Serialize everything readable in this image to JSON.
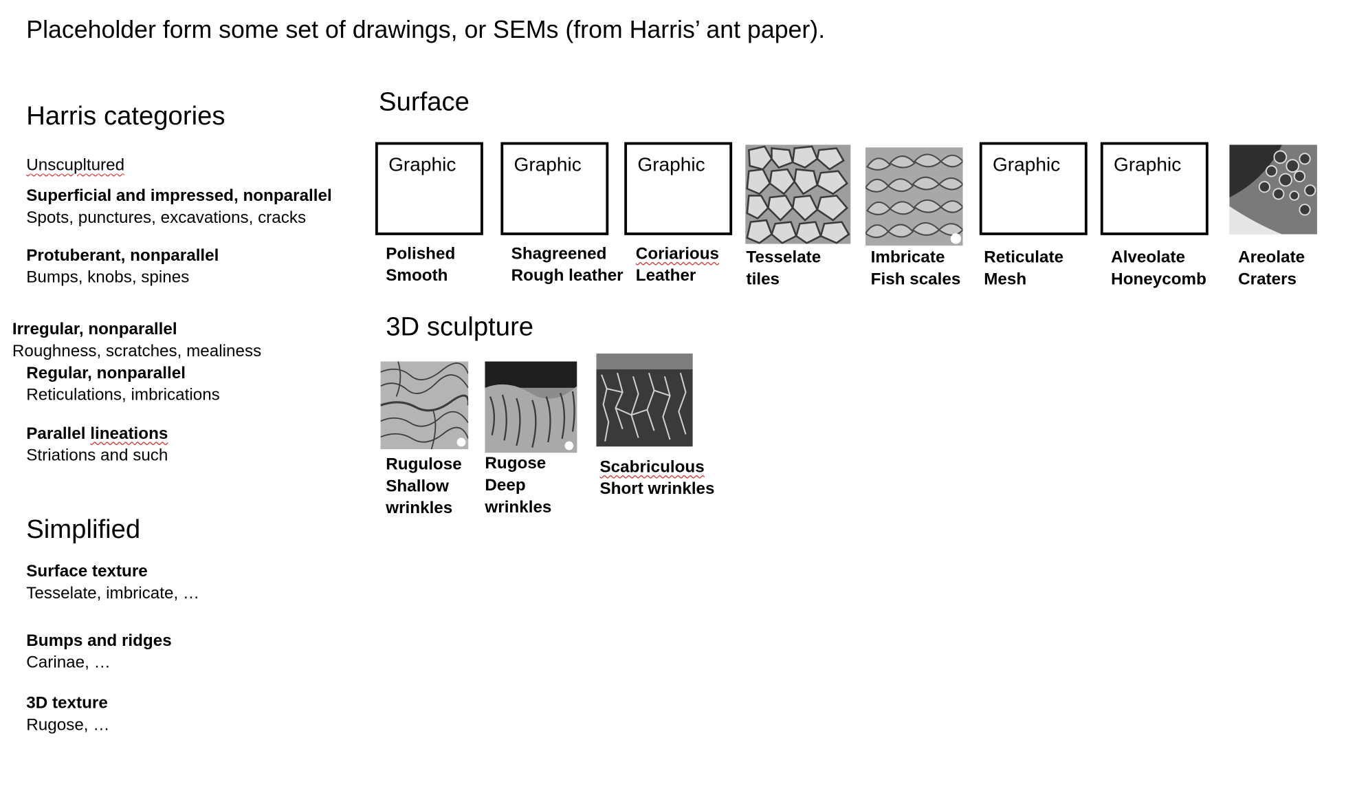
{
  "title": "Placeholder form some set of drawings, or SEMs (from Harris’ ant paper).",
  "harris": {
    "heading": "Harris categories",
    "unsculptured": "Unscupltured",
    "items": [
      {
        "name": "Superficial and impressed, nonparallel",
        "desc": "Spots, punctures, excavations, cracks"
      },
      {
        "name": "Protuberant, nonparallel",
        "desc": "Bumps, knobs, spines"
      },
      {
        "name": "Irregular, nonparallel",
        "desc": "Roughness, scratches, mealiness"
      },
      {
        "name": "Regular, nonparallel",
        "desc": "Reticulations, imbrications"
      },
      {
        "name_a": "Parallel ",
        "name_b": "lineations",
        "desc": "Striations and such"
      }
    ]
  },
  "simplified": {
    "heading": "Simplified",
    "items": [
      {
        "name": "Surface texture",
        "desc": "Tesselate, imbricate, …"
      },
      {
        "name": "Bumps and ridges",
        "desc": "Carinae, …"
      },
      {
        "name": "3D texture",
        "desc": "Rugose, …"
      }
    ]
  },
  "surface": {
    "heading": "Surface",
    "placeholder_label": "Graphic",
    "items": [
      {
        "line1": "Polished",
        "line2": "Smooth"
      },
      {
        "line1": "Shagreened",
        "line2": "Rough leather"
      },
      {
        "line1": "Coriarious",
        "line2": "Leather"
      },
      {
        "line1": "Tesselate",
        "line2": "tiles"
      },
      {
        "line1": "Imbricate",
        "line2": "Fish scales"
      },
      {
        "line1": "Reticulate",
        "line2": "Mesh"
      },
      {
        "line1": "Alveolate",
        "line2": "Honeycomb"
      },
      {
        "line1": "Areolate",
        "line2": "Craters"
      }
    ]
  },
  "sculpture": {
    "heading": "3D sculpture",
    "items": [
      {
        "line1": "Rugulose",
        "line2": "Shallow",
        "line3": "wrinkles"
      },
      {
        "line1": "Rugose",
        "line2": "Deep",
        "line3": "wrinkles"
      },
      {
        "line1": "Scabriculous",
        "line2": "Short wrinkles"
      }
    ]
  },
  "colors": {
    "spellcheck_underline": "#d0342c",
    "placeholder_border": "#000000"
  }
}
